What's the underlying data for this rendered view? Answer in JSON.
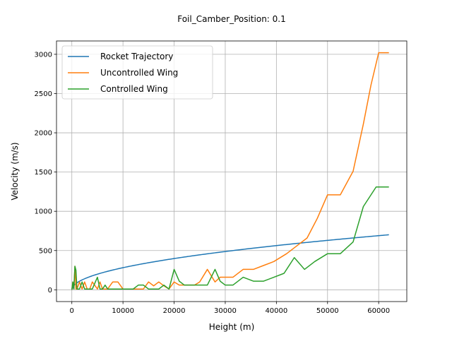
{
  "chart_data": {
    "type": "line",
    "title": "Foil_Camber_Position: 0.1",
    "xlabel": "Height (m)",
    "ylabel": "Velocity (m/s)",
    "xlim": [
      -3000,
      65500
    ],
    "ylim": [
      -150,
      3170
    ],
    "xticks": [
      0,
      10000,
      20000,
      30000,
      40000,
      50000,
      60000
    ],
    "yticks": [
      0,
      500,
      1000,
      1500,
      2000,
      2500,
      3000
    ],
    "grid": true,
    "legend_position": "top-left",
    "series": [
      {
        "name": "Rocket Trajectory",
        "color": "#1f77b4",
        "function": "sqrt",
        "x": [
          0,
          500,
          1000,
          2000,
          3000,
          4000,
          5000,
          6000,
          8000,
          10000,
          12000,
          14000,
          16000,
          18000,
          20000,
          22000,
          25000,
          28000,
          30000,
          33000,
          36000,
          40000,
          44000,
          48000,
          52000,
          56000,
          60000,
          62000
        ],
        "y": [
          0,
          30,
          89,
          126,
          155,
          179,
          200,
          219,
          253,
          283,
          310,
          335,
          358,
          379,
          400,
          420,
          447,
          473,
          490,
          514,
          537,
          566,
          594,
          620,
          645,
          670,
          693,
          701
        ]
      },
      {
        "name": "Uncontrolled Wing",
        "color": "#ff7f0e",
        "x": [
          0,
          200,
          400,
          600,
          800,
          1000,
          1500,
          2000,
          2500,
          3000,
          3500,
          4000,
          5000,
          5500,
          6000,
          7000,
          8000,
          9000,
          10000,
          12000,
          13000,
          14000,
          15000,
          16000,
          17000,
          18000,
          19000,
          20000,
          21000,
          22000,
          23000,
          24000,
          25000,
          26500,
          28000,
          29000,
          30000,
          31500,
          33500,
          35500,
          37500,
          39500,
          42000,
          44000,
          46000,
          48000,
          50000,
          52500,
          55000,
          57000,
          58500,
          60000,
          62000
        ],
        "y": [
          0,
          100,
          10,
          300,
          10,
          10,
          100,
          10,
          100,
          10,
          10,
          100,
          10,
          100,
          10,
          10,
          100,
          100,
          10,
          10,
          10,
          10,
          100,
          50,
          100,
          50,
          10,
          100,
          60,
          60,
          60,
          60,
          100,
          260,
          100,
          160,
          160,
          160,
          260,
          260,
          310,
          360,
          460,
          560,
          660,
          910,
          1210,
          1210,
          1510,
          2110,
          2610,
          3020,
          3020
        ]
      },
      {
        "name": "Controlled Wing",
        "color": "#2ca02c",
        "x": [
          0,
          200,
          400,
          600,
          800,
          1000,
          1500,
          2000,
          2500,
          3000,
          4000,
          5000,
          5500,
          6000,
          6500,
          7000,
          8000,
          10000,
          12000,
          13000,
          14000,
          15000,
          16000,
          17000,
          18000,
          19000,
          20000,
          21000,
          22000,
          23000,
          24000,
          26500,
          28000,
          29000,
          30000,
          31500,
          33500,
          35500,
          37500,
          39500,
          41500,
          43500,
          45500,
          47500,
          50000,
          52500,
          55000,
          57000,
          59500,
          62000
        ],
        "y": [
          0,
          100,
          10,
          300,
          250,
          10,
          10,
          100,
          10,
          10,
          10,
          160,
          10,
          10,
          60,
          10,
          10,
          10,
          10,
          60,
          60,
          10,
          10,
          10,
          60,
          10,
          260,
          110,
          60,
          60,
          60,
          60,
          260,
          110,
          60,
          60,
          160,
          110,
          110,
          160,
          210,
          410,
          260,
          360,
          460,
          460,
          610,
          1060,
          1310,
          1310
        ]
      }
    ]
  }
}
